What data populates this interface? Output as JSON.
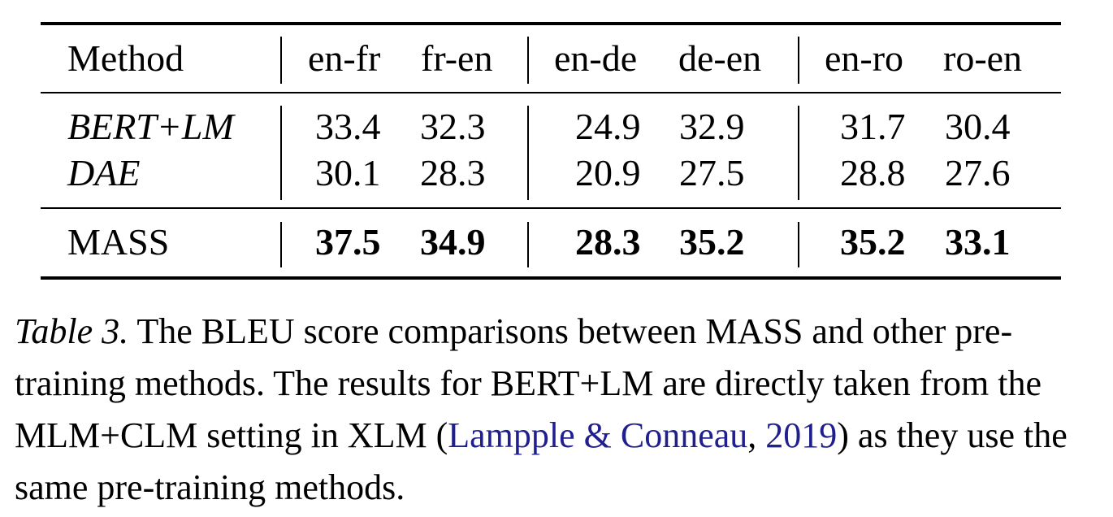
{
  "table": {
    "header": {
      "method": "Method",
      "cols": [
        "en-fr",
        "fr-en",
        "en-de",
        "de-en",
        "en-ro",
        "ro-en"
      ]
    },
    "rows": [
      {
        "method": "BERT+LM",
        "style": "italic",
        "values": [
          "33.4",
          "32.3",
          "24.9",
          "32.9",
          "31.7",
          "30.4"
        ]
      },
      {
        "method": "DAE",
        "style": "italic",
        "values": [
          "30.1",
          "28.3",
          "20.9",
          "27.5",
          "28.8",
          "27.6"
        ]
      },
      {
        "method": "MASS",
        "style": "normal",
        "values": [
          "37.5",
          "34.9",
          "28.3",
          "35.2",
          "35.2",
          "33.1"
        ]
      }
    ]
  },
  "caption": {
    "label": "Table 3.",
    "text_1": " The BLEU score comparisons between MASS and other pre-training methods. The results for BERT+LM are directly taken from the MLM+CLM setting in XLM (",
    "cite_author": "Lampple & Conneau",
    "cite_sep": ", ",
    "cite_year": "2019",
    "text_2": ") as they use the same pre-training methods."
  },
  "colors": {
    "citation": "#1f1f8f"
  }
}
